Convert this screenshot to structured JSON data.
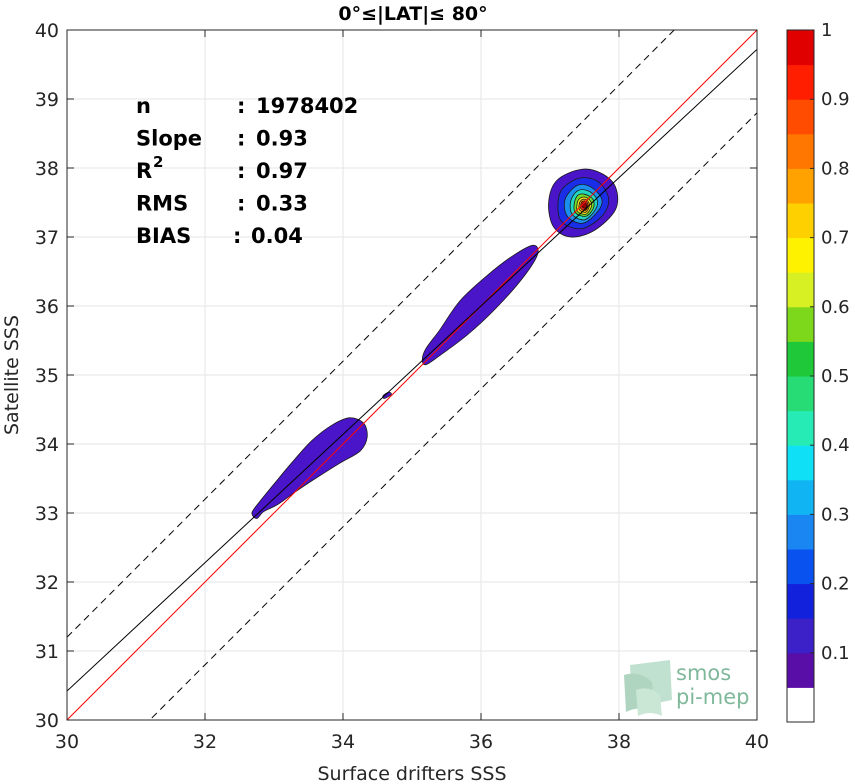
{
  "chart_data": {
    "type": "heatmap",
    "title": "0°≤|LAT|≤ 80°",
    "xlabel": "Surface drifters SSS",
    "ylabel": "Satellite SSS",
    "xlim": [
      30,
      40
    ],
    "ylim": [
      30,
      40
    ],
    "x_ticks": [
      "30",
      "32",
      "34",
      "36",
      "38",
      "40"
    ],
    "y_ticks": [
      "30",
      "31",
      "32",
      "33",
      "34",
      "35",
      "36",
      "37",
      "38",
      "39",
      "40"
    ],
    "grid": true,
    "stats": [
      {
        "label": "n",
        "sep": ": ",
        "value": "1978402"
      },
      {
        "label": "Slope",
        "sep": ": ",
        "value": "0.93"
      },
      {
        "label": "R",
        "sup": "2",
        "sep": ": ",
        "value": "0.97"
      },
      {
        "label": "RMS",
        "sep": ": ",
        "value": "0.33"
      },
      {
        "label": "BIAS",
        "sep": ": ",
        "value": "0.04"
      }
    ],
    "lines": [
      {
        "kind": "one-to-one",
        "color": "#ff0000",
        "style": "solid",
        "x": [
          30,
          40
        ],
        "y": [
          30,
          40
        ]
      },
      {
        "kind": "regression",
        "color": "#000000",
        "style": "solid",
        "x": [
          30,
          40
        ],
        "y": [
          30.42,
          39.72
        ]
      },
      {
        "kind": "upper-bound",
        "color": "#000000",
        "style": "dashed",
        "x": [
          30,
          40
        ],
        "y": [
          31.2,
          41.2
        ]
      },
      {
        "kind": "lower-bound",
        "color": "#000000",
        "style": "dashed",
        "x": [
          30,
          40
        ],
        "y": [
          28.8,
          38.8
        ]
      }
    ],
    "density_blobs": [
      {
        "color": "#4a15c9",
        "points": [
          [
            32.75,
            32.92
          ],
          [
            32.85,
            33.02
          ],
          [
            33.05,
            33.12
          ],
          [
            33.3,
            33.3
          ],
          [
            33.6,
            33.5
          ],
          [
            33.95,
            33.72
          ],
          [
            34.25,
            33.9
          ],
          [
            34.35,
            34.1
          ],
          [
            34.3,
            34.3
          ],
          [
            34.1,
            34.38
          ],
          [
            33.85,
            34.28
          ],
          [
            33.55,
            34.05
          ],
          [
            33.25,
            33.72
          ],
          [
            33.0,
            33.42
          ],
          [
            32.78,
            33.15
          ],
          [
            32.68,
            33.0
          ]
        ]
      },
      {
        "color": "#4a15c9",
        "points": [
          [
            34.6,
            34.66
          ],
          [
            34.7,
            34.72
          ],
          [
            34.66,
            34.75
          ],
          [
            34.58,
            34.7
          ]
        ]
      },
      {
        "color": "#4a15c9",
        "points": [
          [
            35.2,
            35.15
          ],
          [
            35.4,
            35.28
          ],
          [
            35.8,
            35.58
          ],
          [
            36.2,
            35.95
          ],
          [
            36.6,
            36.4
          ],
          [
            36.82,
            36.75
          ],
          [
            36.75,
            36.88
          ],
          [
            36.45,
            36.72
          ],
          [
            36.1,
            36.45
          ],
          [
            35.7,
            36.08
          ],
          [
            35.4,
            35.65
          ],
          [
            35.2,
            35.38
          ],
          [
            35.15,
            35.22
          ]
        ]
      },
      {
        "color": "#4a15c9",
        "points": [
          [
            37.05,
            37.15
          ],
          [
            37.3,
            37.0
          ],
          [
            37.65,
            37.1
          ],
          [
            37.95,
            37.4
          ],
          [
            37.95,
            37.72
          ],
          [
            37.75,
            37.92
          ],
          [
            37.45,
            37.98
          ],
          [
            37.1,
            37.82
          ],
          [
            36.98,
            37.5
          ]
        ]
      },
      {
        "color": "#1a2ee8",
        "points": [
          [
            37.15,
            37.25
          ],
          [
            37.45,
            37.12
          ],
          [
            37.75,
            37.3
          ],
          [
            37.85,
            37.55
          ],
          [
            37.7,
            37.8
          ],
          [
            37.42,
            37.85
          ],
          [
            37.15,
            37.65
          ]
        ]
      },
      {
        "color": "#1b8ff0",
        "points": [
          [
            37.25,
            37.3
          ],
          [
            37.48,
            37.2
          ],
          [
            37.7,
            37.38
          ],
          [
            37.75,
            37.55
          ],
          [
            37.6,
            37.72
          ],
          [
            37.4,
            37.75
          ],
          [
            37.22,
            37.55
          ]
        ]
      },
      {
        "color": "#22d6c0",
        "points": [
          [
            37.32,
            37.33
          ],
          [
            37.5,
            37.25
          ],
          [
            37.66,
            37.4
          ],
          [
            37.68,
            37.55
          ],
          [
            37.55,
            37.67
          ],
          [
            37.4,
            37.67
          ],
          [
            37.3,
            37.52
          ]
        ]
      },
      {
        "color": "#6fdc2a",
        "points": [
          [
            37.37,
            37.35
          ],
          [
            37.52,
            37.3
          ],
          [
            37.63,
            37.42
          ],
          [
            37.62,
            37.55
          ],
          [
            37.5,
            37.62
          ],
          [
            37.4,
            37.6
          ],
          [
            37.35,
            37.48
          ]
        ]
      },
      {
        "color": "#f5e81a",
        "points": [
          [
            37.4,
            37.37
          ],
          [
            37.52,
            37.33
          ],
          [
            37.6,
            37.44
          ],
          [
            37.58,
            37.53
          ],
          [
            37.5,
            37.58
          ],
          [
            37.42,
            37.55
          ],
          [
            37.39,
            37.46
          ]
        ]
      },
      {
        "color": "#ff9f10",
        "points": [
          [
            37.43,
            37.39
          ],
          [
            37.52,
            37.36
          ],
          [
            37.57,
            37.45
          ],
          [
            37.55,
            37.52
          ],
          [
            37.49,
            37.55
          ],
          [
            37.44,
            37.52
          ],
          [
            37.42,
            37.46
          ]
        ]
      },
      {
        "color": "#ff2a05",
        "points": [
          [
            37.45,
            37.41
          ],
          [
            37.52,
            37.39
          ],
          [
            37.55,
            37.46
          ],
          [
            37.53,
            37.51
          ],
          [
            37.48,
            37.52
          ],
          [
            37.45,
            37.49
          ]
        ]
      },
      {
        "color": "#9c0000",
        "points": [
          [
            37.47,
            37.43
          ],
          [
            37.52,
            37.42
          ],
          [
            37.53,
            37.47
          ],
          [
            37.5,
            37.5
          ],
          [
            37.47,
            37.48
          ]
        ]
      }
    ],
    "colorbar": {
      "ticks": [
        "0.1",
        "0.2",
        "0.3",
        "0.4",
        "0.5",
        "0.6",
        "0.7",
        "0.8",
        "0.9",
        "1"
      ],
      "tick_values": [
        0.1,
        0.2,
        0.3,
        0.4,
        0.5,
        0.6,
        0.7,
        0.8,
        0.9,
        1.0
      ],
      "levels": [
        "#ffffff",
        "#5a0ea8",
        "#3c20c8",
        "#1222dc",
        "#0a52f0",
        "#1a86f2",
        "#11b4f2",
        "#10e0f5",
        "#26ebb4",
        "#27dc74",
        "#1ec838",
        "#7dd81c",
        "#d6f023",
        "#fff200",
        "#ffd000",
        "#ffa200",
        "#ff7600",
        "#ff4c00",
        "#ff1e00",
        "#e10000",
        "#a00000"
      ]
    }
  },
  "logo": {
    "line1": "smos",
    "line2": "pi-mep"
  }
}
